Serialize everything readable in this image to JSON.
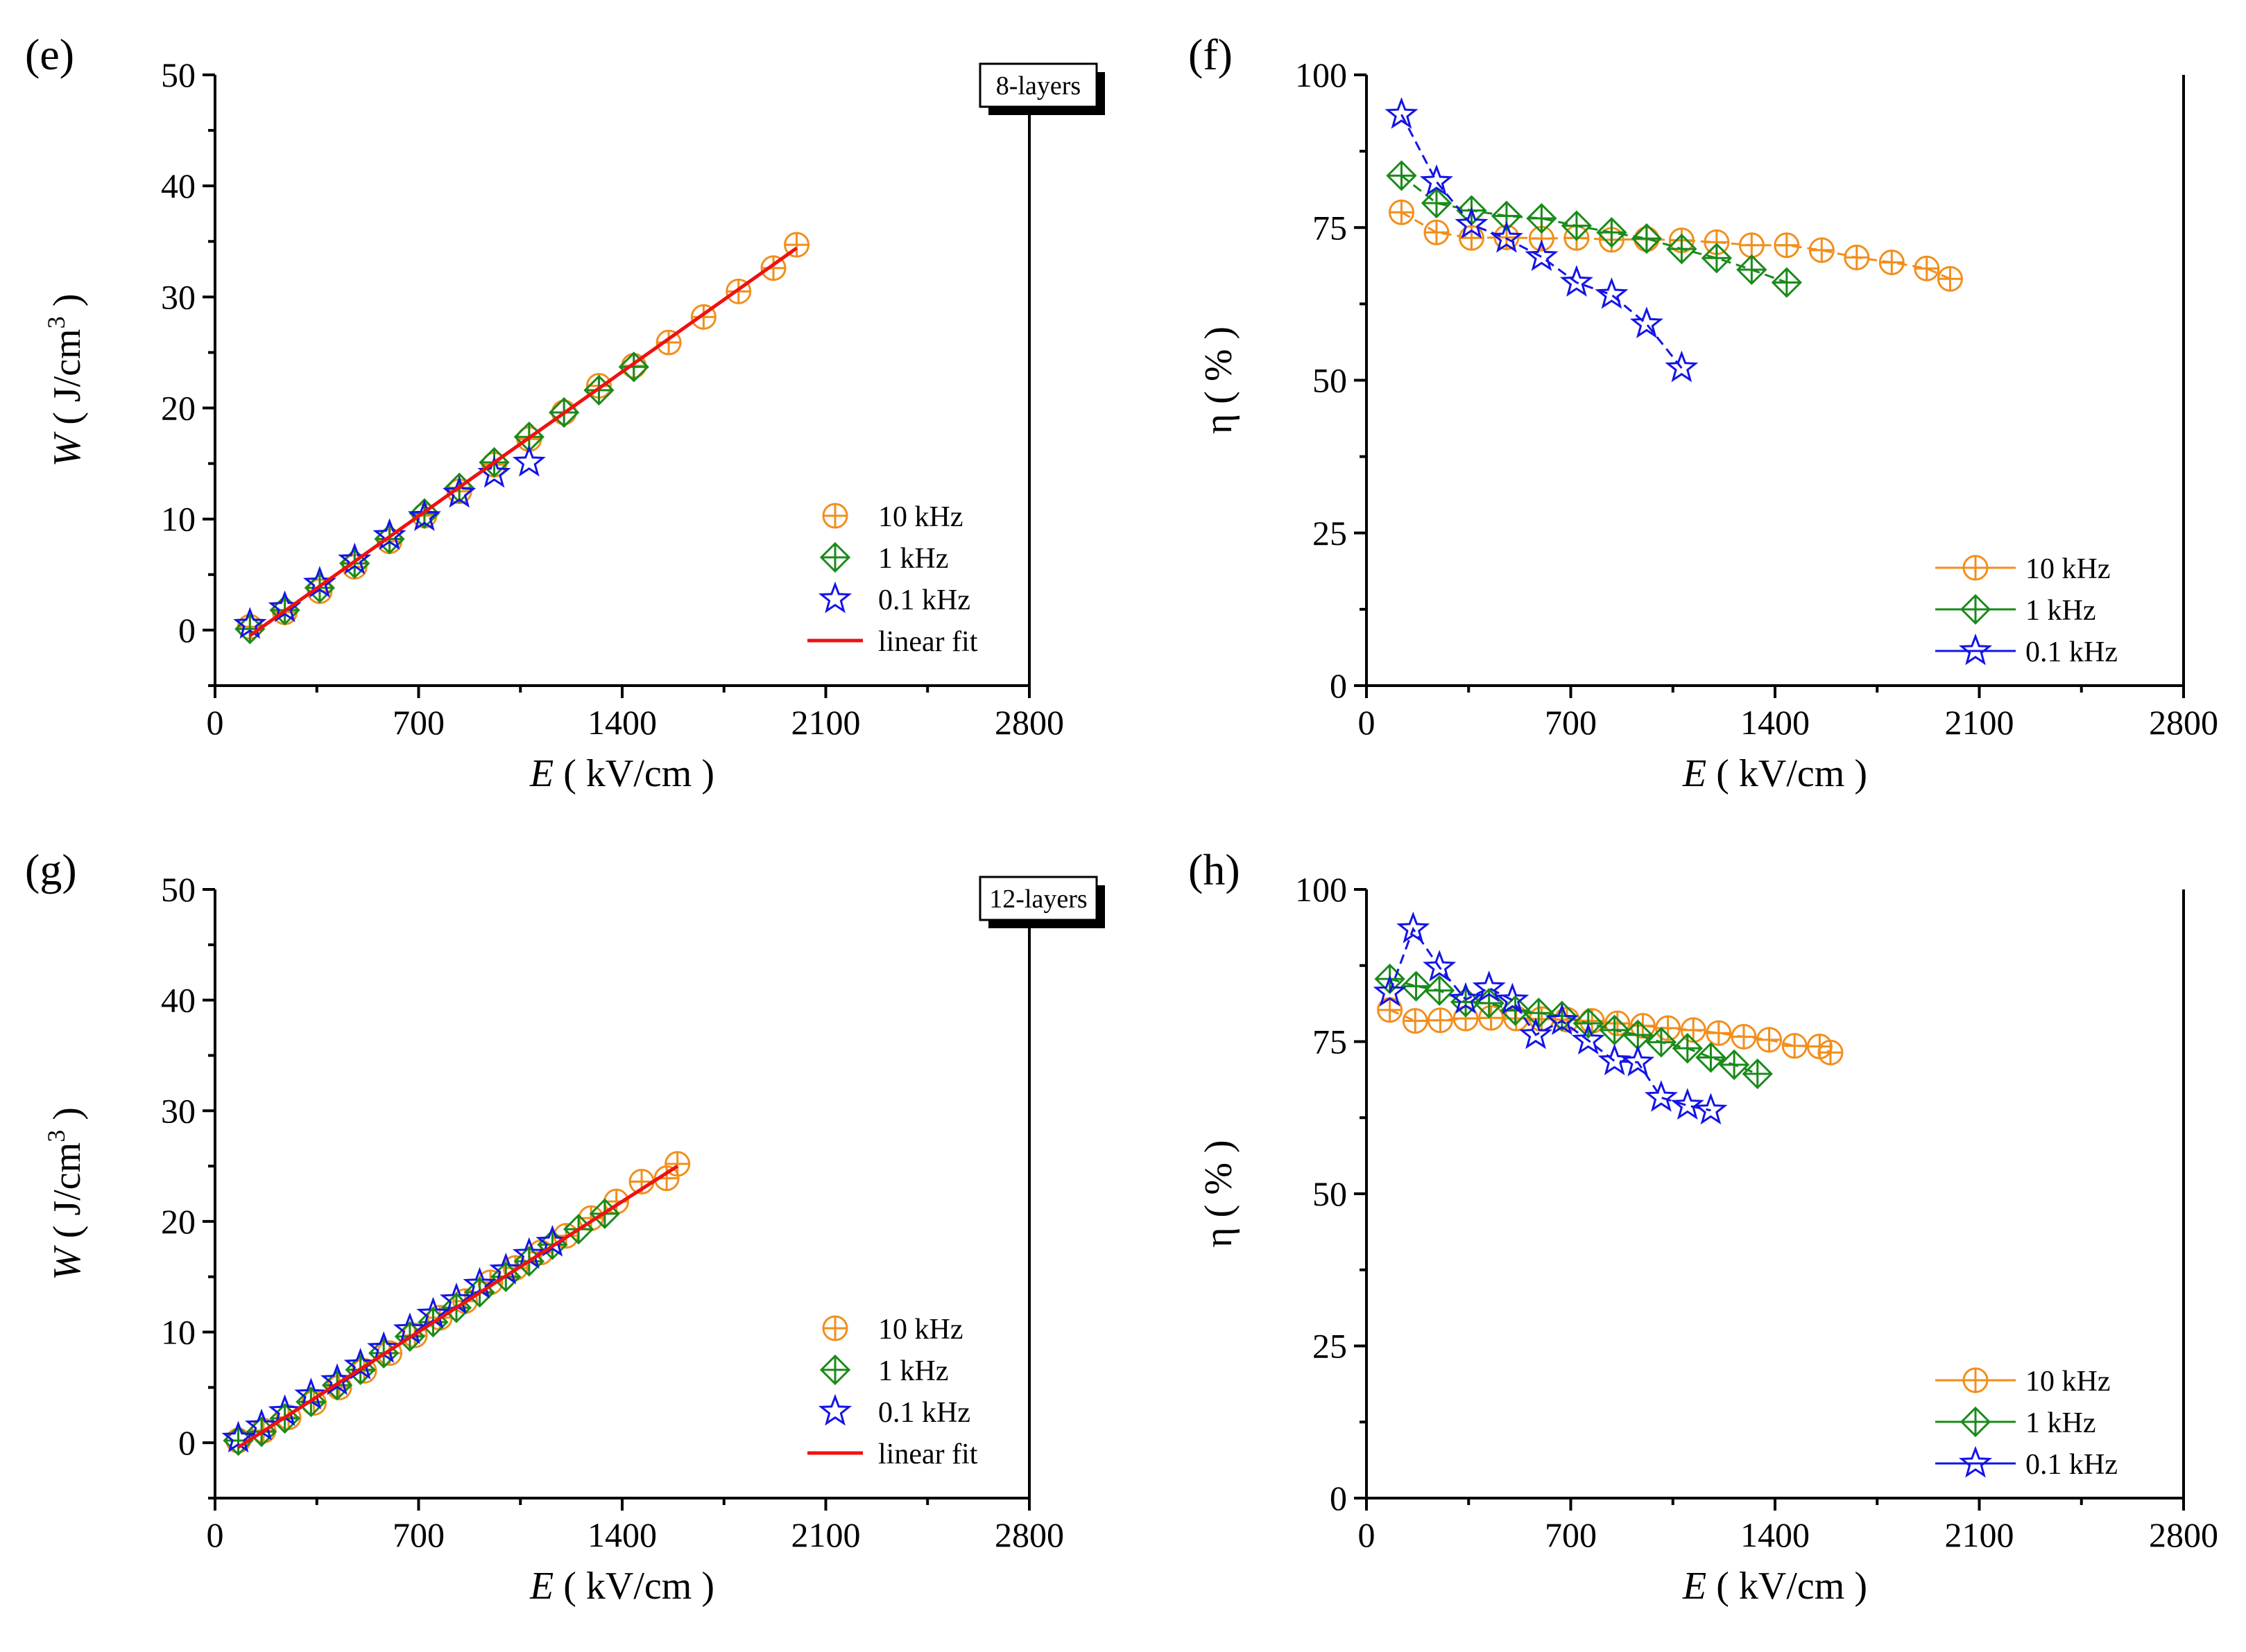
{
  "figure": {
    "panels": [
      "(e)",
      "(f)",
      "(g)",
      "(h)"
    ],
    "badges": [
      "8-layers",
      "12-layers"
    ]
  },
  "colors": {
    "orange": "#f28e1c",
    "green": "#1a8a1a",
    "blue": "#1414e6",
    "red": "#ee1111"
  },
  "chart_data": [
    {
      "id": "e",
      "type": "scatter",
      "panel_label": "(e)",
      "badge": "8-layers",
      "xlabel_italic": "E",
      "xlabel_rest": " ( kV/cm )",
      "ylabel_italic": "W",
      "ylabel_rest": " ( J/cm",
      "ylabel_sup": "3",
      "ylabel_end": " )",
      "xlim": [
        0,
        2800
      ],
      "ylim": [
        -5,
        50
      ],
      "xticks": [
        0,
        700,
        1400,
        2100,
        2800
      ],
      "yticks": [
        0,
        10,
        20,
        30,
        40,
        50
      ],
      "legend_position": "bottom-right",
      "series": [
        {
          "name": "10 kHz",
          "marker": "circleplus",
          "color": "orange",
          "line": false,
          "x": [
            120,
            240,
            360,
            480,
            600,
            720,
            840,
            960,
            1080,
            1200,
            1320,
            1440,
            1560,
            1680,
            1800,
            1920,
            2000
          ],
          "y": [
            0.3,
            1.6,
            3.5,
            5.7,
            8.0,
            10.3,
            12.5,
            14.9,
            17.2,
            19.6,
            22.0,
            23.8,
            25.9,
            28.2,
            30.5,
            32.6,
            34.7
          ]
        },
        {
          "name": "1 kHz",
          "marker": "diamondplus",
          "color": "green",
          "line": false,
          "x": [
            120,
            240,
            360,
            480,
            600,
            720,
            840,
            960,
            1080,
            1200,
            1320,
            1440
          ],
          "y": [
            0.1,
            1.8,
            3.8,
            6.0,
            8.2,
            10.5,
            12.8,
            15.1,
            17.4,
            19.6,
            21.6,
            23.7
          ]
        },
        {
          "name": "0.1 kHz",
          "marker": "star",
          "color": "blue",
          "line": false,
          "x": [
            120,
            240,
            360,
            480,
            600,
            720,
            840,
            960,
            1080
          ],
          "y": [
            0.5,
            2.0,
            4.2,
            6.3,
            8.5,
            10.2,
            12.3,
            14.1,
            15.1
          ]
        },
        {
          "name": "linear fit",
          "marker": "none",
          "color": "red",
          "line": true,
          "x": [
            120,
            2000
          ],
          "y": [
            -0.5,
            34.4
          ]
        }
      ]
    },
    {
      "id": "f",
      "type": "line",
      "panel_label": "(f)",
      "xlabel_italic": "E",
      "xlabel_rest": " ( kV/cm )",
      "ylabel_text": "η ( % )",
      "xlim": [
        0,
        2800
      ],
      "ylim": [
        0,
        100
      ],
      "xticks": [
        0,
        700,
        1400,
        2100,
        2800
      ],
      "yticks": [
        0,
        25,
        50,
        75,
        100
      ],
      "legend_position": "bottom-right",
      "series": [
        {
          "name": "10 kHz",
          "marker": "circleplus",
          "color": "orange",
          "line": true,
          "x": [
            120,
            240,
            360,
            480,
            600,
            720,
            840,
            960,
            1080,
            1200,
            1320,
            1440,
            1560,
            1680,
            1800,
            1920,
            2000
          ],
          "y": [
            77.5,
            74.2,
            73.3,
            73.4,
            73.2,
            73.3,
            73.0,
            73.1,
            72.9,
            72.6,
            72.1,
            72.1,
            71.3,
            70.1,
            69.3,
            68.3,
            66.6
          ]
        },
        {
          "name": "1 kHz",
          "marker": "diamondplus",
          "color": "green",
          "line": true,
          "x": [
            120,
            240,
            360,
            480,
            600,
            720,
            840,
            960,
            1080,
            1200,
            1320,
            1440
          ],
          "y": [
            83.5,
            79.0,
            77.8,
            76.9,
            76.5,
            75.3,
            74.2,
            73.2,
            71.5,
            70.0,
            68.1,
            66.0
          ]
        },
        {
          "name": "0.1 kHz",
          "marker": "star",
          "color": "blue",
          "line": true,
          "x": [
            120,
            240,
            360,
            480,
            600,
            720,
            840,
            960,
            1080
          ],
          "y": [
            93.5,
            82.5,
            75.5,
            73.2,
            70.2,
            66.0,
            64.0,
            59.2,
            52.0
          ]
        }
      ]
    },
    {
      "id": "g",
      "type": "scatter",
      "panel_label": "(g)",
      "badge": "12-layers",
      "xlabel_italic": "E",
      "xlabel_rest": " ( kV/cm )",
      "ylabel_italic": "W",
      "ylabel_rest": " ( J/cm",
      "ylabel_sup": "3",
      "ylabel_end": " )",
      "xlim": [
        0,
        2800
      ],
      "ylim": [
        -5,
        50
      ],
      "xticks": [
        0,
        700,
        1400,
        2100,
        2800
      ],
      "yticks": [
        0,
        10,
        20,
        30,
        40,
        50
      ],
      "legend_position": "bottom-right",
      "series": [
        {
          "name": "10 kHz",
          "marker": "circleplus",
          "color": "orange",
          "line": false,
          "x": [
            80,
            167,
            253,
            340,
            427,
            513,
            600,
            687,
            773,
            860,
            947,
            1033,
            1120,
            1207,
            1293,
            1380,
            1467,
            1553,
            1590
          ],
          "y": [
            0.2,
            1.1,
            2.3,
            3.6,
            5.0,
            6.5,
            8.1,
            9.7,
            11.3,
            12.8,
            14.5,
            15.8,
            17.2,
            18.7,
            20.3,
            21.8,
            23.6,
            23.9,
            25.2
          ]
        },
        {
          "name": "1 kHz",
          "marker": "diamondplus",
          "color": "green",
          "line": false,
          "x": [
            80,
            160,
            240,
            330,
            420,
            500,
            580,
            670,
            750,
            830,
            910,
            1000,
            1080,
            1160,
            1250,
            1340
          ],
          "y": [
            0.2,
            1.0,
            2.2,
            3.7,
            5.2,
            6.6,
            8.1,
            9.6,
            10.9,
            12.2,
            13.6,
            15.0,
            16.4,
            17.9,
            19.3,
            20.7
          ]
        },
        {
          "name": "0.1 kHz",
          "marker": "star",
          "color": "blue",
          "line": false,
          "x": [
            80,
            160,
            240,
            330,
            420,
            500,
            580,
            670,
            750,
            830,
            910,
            1000,
            1080,
            1160
          ],
          "y": [
            0.4,
            1.5,
            2.8,
            4.3,
            5.6,
            7.0,
            8.5,
            10.2,
            11.6,
            12.9,
            14.3,
            15.6,
            17.0,
            18.1
          ]
        },
        {
          "name": "linear fit",
          "marker": "none",
          "color": "red",
          "line": true,
          "x": [
            80,
            1590
          ],
          "y": [
            -0.4,
            25.0
          ]
        }
      ]
    },
    {
      "id": "h",
      "type": "line",
      "panel_label": "(h)",
      "xlabel_italic": "E",
      "xlabel_rest": " ( kV/cm )",
      "ylabel_text": "η ( % )",
      "xlim": [
        0,
        2800
      ],
      "ylim": [
        0,
        100
      ],
      "xticks": [
        0,
        700,
        1400,
        2100,
        2800
      ],
      "yticks": [
        0,
        25,
        50,
        75,
        100
      ],
      "legend_position": "bottom-right",
      "series": [
        {
          "name": "10 kHz",
          "marker": "circleplus",
          "color": "orange",
          "line": true,
          "x": [
            80,
            167,
            253,
            340,
            427,
            513,
            600,
            687,
            773,
            860,
            947,
            1033,
            1120,
            1207,
            1293,
            1380,
            1467,
            1553,
            1590
          ],
          "y": [
            80.2,
            78.4,
            78.5,
            78.8,
            78.9,
            78.8,
            78.7,
            78.6,
            78.4,
            78.0,
            77.6,
            77.2,
            76.9,
            76.4,
            75.8,
            75.3,
            74.3,
            74.2,
            73.2
          ]
        },
        {
          "name": "1 kHz",
          "marker": "diamondplus",
          "color": "green",
          "line": true,
          "x": [
            80,
            170,
            250,
            340,
            420,
            510,
            590,
            670,
            760,
            850,
            930,
            1010,
            1100,
            1180,
            1260,
            1340
          ],
          "y": [
            85.3,
            84.1,
            83.4,
            81.5,
            81.3,
            80.1,
            79.7,
            79.2,
            78.0,
            76.9,
            76.1,
            74.9,
            73.9,
            72.4,
            71.2,
            69.7
          ]
        },
        {
          "name": "0.1 kHz",
          "marker": "star",
          "color": "blue",
          "line": true,
          "x": [
            80,
            160,
            250,
            340,
            420,
            500,
            580,
            670,
            760,
            850,
            930,
            1010,
            1100,
            1180
          ],
          "y": [
            83.1,
            93.5,
            87.2,
            81.9,
            83.8,
            81.8,
            76.1,
            78.4,
            75.2,
            71.8,
            71.6,
            65.8,
            64.5,
            63.7
          ]
        }
      ]
    }
  ]
}
